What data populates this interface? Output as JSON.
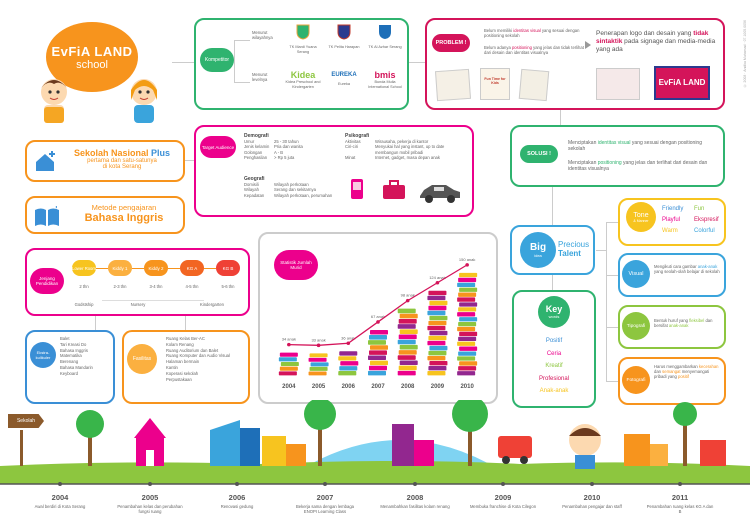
{
  "credit": "© 2008 · Andika Muhamad · 07.1005.0056",
  "logo": {
    "name": "EvFiA LAND",
    "sub": "school"
  },
  "tagline1": {
    "a": "Sekolah Nasional",
    "b": "Plus",
    "c": "pertama dan satu-satunya",
    "d": "di kota Serang"
  },
  "tagline2": {
    "a": "Metode pengajaran",
    "b": "Bahasa Inggris"
  },
  "competitor": {
    "label": "Kompetitor",
    "grp1": "Menurut wilayahnya",
    "grp2": "Menurut levelnya",
    "schools1": [
      "TK Mardi Yuana Serang",
      "TK Pelita Harapan",
      "TK Al Azhar Serang"
    ],
    "schools2": [
      "Kidea Preschool and Kindergarten",
      "Eureka",
      "Bunda Mulia International School"
    ],
    "logos2": [
      "Kidea",
      "EUREKA",
      "bmis"
    ]
  },
  "problem": {
    "label": "PROBLEM !",
    "b1a": "Belum memiliki ",
    "b1b": "identitas visual",
    "b1c": " yang sesuai dengan positioning sekolah",
    "b2a": "Belum adanya ",
    "b2b": "positioning",
    "b2c": " yang jelas dan tidak terlihat dari desain dan identitas visualnya",
    "statement_a": "Penerapan logo dan desain yang ",
    "statement_b": "tidak sintaktik",
    "statement_c": " pada signage dan media-media yang ada",
    "sign1": "Fun Time for Kids",
    "sign2": "EvFiA LAND"
  },
  "audience": {
    "label": "Target Audience",
    "demo_title": "Demografi",
    "demo_rows": [
      [
        "Umur",
        "25 - 30 tahun"
      ],
      [
        "Jenis kelamin",
        "Pria dan wanita"
      ],
      [
        "Golongan",
        "A - B"
      ],
      [
        "Penghasilan",
        "> Rp 5 juta"
      ]
    ],
    "geo_title": "Geografi",
    "geo_rows": [
      [
        "Domisili",
        "Wilayah perkotaan"
      ],
      [
        "Wilayah",
        "Serang dan sekitarnya"
      ],
      [
        "Kepadatan",
        "Wilayah perkotaan, perumahan"
      ]
    ],
    "psy_title": "Psikografi",
    "psy_rows": [
      [
        "Aktivitas",
        "Wirausaha, pekerja di kantor"
      ],
      [
        "Ciri-ciri",
        "Menyukai hal yang instant, up to date"
      ],
      [
        "",
        "membangun mobil pribadi"
      ],
      [
        "Minat",
        "Internet, gadget, masa depan anak"
      ]
    ]
  },
  "solution": {
    "label": "SOLUSI !",
    "s1a": "Menciptakan ",
    "s1b": "identitas visual",
    "s1c": " yang sesuai dengan positioning sekolah",
    "s2a": "Menciptakan ",
    "s2b": "positioning",
    "s2c": " yang jelas dan terlihat dari desain dan identitas visualnya"
  },
  "bigidea": {
    "big": "Big",
    "idea": "idea",
    "precious": "Precious",
    "talent": "Talent"
  },
  "keywords": {
    "key": "Key",
    "words": "words",
    "items": [
      "Positif",
      "Ceria",
      "Kreatif",
      "Profesional",
      "Anak-anak"
    ]
  },
  "tone": {
    "label1": "Tone",
    "label2": "& Manner",
    "words": [
      "Friendly",
      "Fun",
      "Playful",
      "Ekspresif",
      "Warm",
      "Colorful"
    ]
  },
  "visual": {
    "label": "Visual",
    "text_a": "Mengikuti cara gambar ",
    "text_b": "anak-anak",
    "text_c": " yang seolah-olah belajar di sekolah"
  },
  "tipografi": {
    "label": "Tipografi",
    "text_a": "Bentuk huruf yang ",
    "text_b": "fleksibel",
    "text_c": " dan bersifat ",
    "text_d": "anak-anak"
  },
  "fotografi": {
    "label": "Fotografi",
    "text_a": "Harus menggambarkan ",
    "text_b": "kecerahan",
    "text_c": " dan ",
    "text_d": "semangat",
    "text_e": " menyemangati pribadi yang ",
    "text_f": "positif"
  },
  "jenjang": {
    "label": "Jenjang Pendidikan",
    "levels": [
      "Lower Room",
      "Kiddy 1",
      "Kiddy 2",
      "KG A",
      "KG B"
    ],
    "ages": [
      "2 thn",
      "2-3 thn",
      "3-4 thn",
      "4-5 thn",
      "5-6 thn"
    ],
    "groups": [
      "Godstship",
      "Nursery",
      "Kindergarten"
    ]
  },
  "extra": {
    "label": "Ekstra-kulikuler",
    "items": [
      "Balet",
      "Tari Kreasi Do",
      "Bahasa Inggris",
      "Matematika",
      "Berenang",
      "Bahasa Mandarin",
      "Keyboard"
    ]
  },
  "fasilitas": {
    "label": "Fasilitas",
    "items": [
      "Ruang Kelas Ber-AC",
      "Kolam Renang",
      "Ruang Auditorium dan Balet",
      "Ruang Komputer dan Audio Visual",
      "Halaman bermain",
      "Kantin",
      "Koperasi sekolah",
      "Perpustakaan"
    ]
  },
  "chart_data": {
    "type": "bar",
    "title": "Statistik Jumlah Murid",
    "categories": [
      "2004",
      "2005",
      "2006",
      "2007",
      "2008",
      "2009",
      "2010"
    ],
    "values": [
      34,
      33,
      36,
      67,
      98,
      124,
      150
    ],
    "value_labels": [
      "34 anak",
      "33 anak",
      "36 anak",
      "67 anak",
      "98 anak",
      "124 anak",
      "150 anak"
    ],
    "colors": {
      "line": "#d4145a",
      "accent": "#ec008c"
    }
  },
  "sign": "Sekolah",
  "timeline": [
    {
      "year": "2004",
      "desc": "Awal berdiri di Kota Serang"
    },
    {
      "year": "2005",
      "desc": "Penambahan kelas dan perubahan fungsi ruang"
    },
    {
      "year": "2006",
      "desc": "Renovasi gedung"
    },
    {
      "year": "2007",
      "desc": "Bekerja sama dengan lembaga ENOPI Learning Class"
    },
    {
      "year": "2008",
      "desc": "Menambahkan fasilitas kolam renang"
    },
    {
      "year": "2009",
      "desc": "Membuka franchise di Kota Cilegon"
    },
    {
      "year": "2010",
      "desc": "Penambahan pengajar dan staff"
    },
    {
      "year": "2011",
      "desc": "Penambahan ruang kelas KG A dan B"
    }
  ]
}
